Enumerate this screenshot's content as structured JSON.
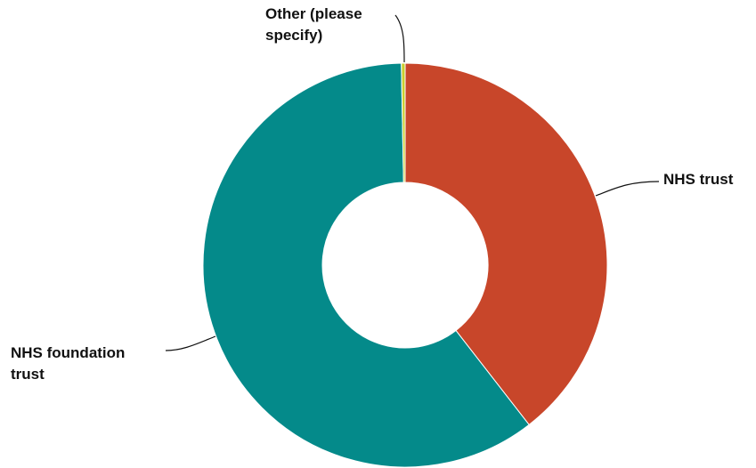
{
  "chart_data": {
    "type": "pie",
    "donut": true,
    "legend": "none",
    "categories": [
      "NHS trust",
      "NHS foundation trust",
      "Other (please specify)"
    ],
    "values": [
      39.5,
      60.2,
      0.3
    ],
    "colors": [
      "#c8462a",
      "#048a8a",
      "#c9cf2f"
    ],
    "labels": {
      "nhs_trust": [
        "NHS trust"
      ],
      "nhs_foundation_trust": [
        "NHS foundation",
        "trust"
      ],
      "other": [
        "Other (please",
        "specify)"
      ]
    }
  }
}
